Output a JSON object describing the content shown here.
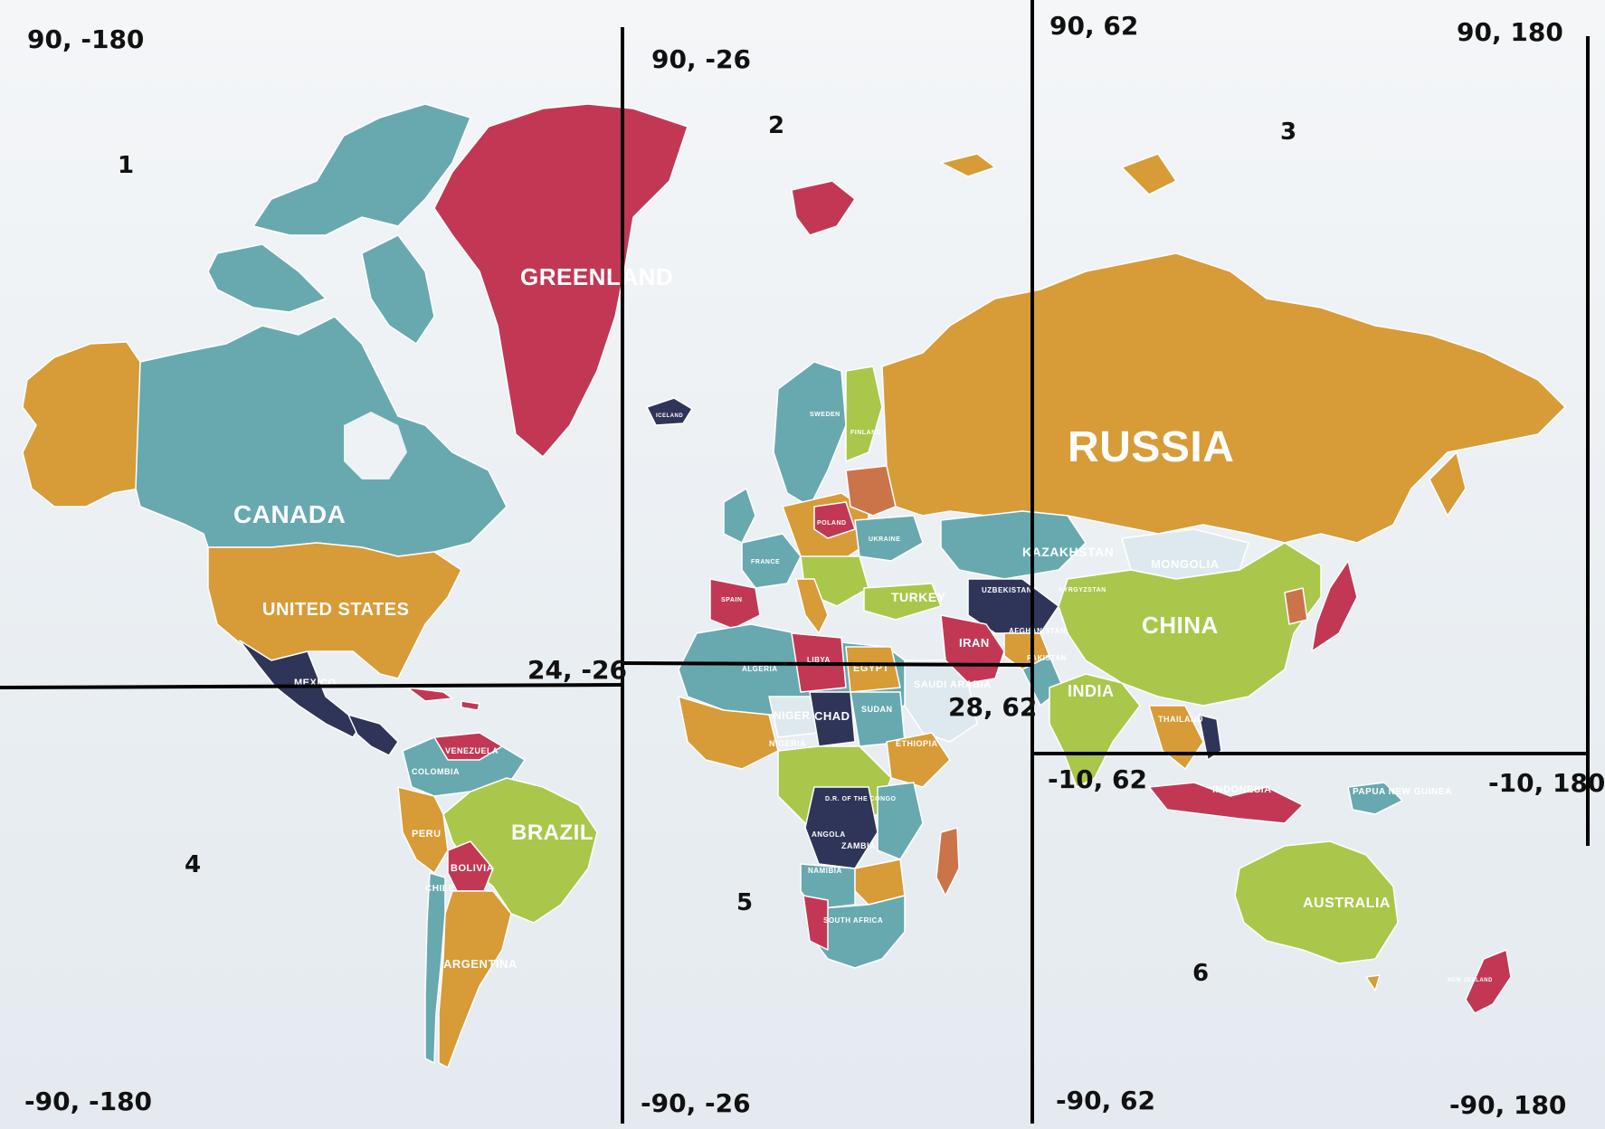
{
  "colors": {
    "teal": "#68a9b0",
    "orange": "#d79b38",
    "crimson": "#c23854",
    "green": "#a9c74a",
    "navy": "#2f3558",
    "rust": "#cc7449",
    "grid": "#000000"
  },
  "corners": {
    "z1_tl": "90, -180",
    "z2_tl": "90, -26",
    "z3_tl": "90, 62",
    "z3_tr": "90, 180",
    "mid_left": "24, -26",
    "mid_center": "28, 62",
    "z6_tl": "-10, 62",
    "z6_tr": "-10, 180",
    "bl_1": "-90, -180",
    "bl_2": "-90, -26",
    "bl_3": "-90, 62",
    "br": "-90, 180"
  },
  "zones": {
    "z1": "1",
    "z2": "2",
    "z3": "3",
    "z4": "4",
    "z5": "5",
    "z6": "6"
  },
  "countries": {
    "greenland": "GREENLAND",
    "canada": "CANADA",
    "united_states": "UNITED STATES",
    "mexico": "MEXICO",
    "brazil": "BRAZIL",
    "argentina": "ARGENTINA",
    "bolivia": "BOLIVIA",
    "peru": "PERU",
    "colombia": "COLOMBIA",
    "venezuela": "VENEZUELA",
    "chile": "CHILE",
    "russia": "RUSSIA",
    "china": "CHINA",
    "india": "INDIA",
    "kazakhstan": "KAZAKHSTAN",
    "mongolia": "MONGOLIA",
    "iran": "IRAN",
    "turkey": "TURKEY",
    "saudi_arabia": "SAUDI ARABIA",
    "egypt": "EGYPT",
    "libya": "LIBYA",
    "algeria": "ALGERIA",
    "niger": "NIGER",
    "chad": "CHAD",
    "sudan": "SUDAN",
    "ethiopia": "ETHIOPIA",
    "nigeria": "NIGERIA",
    "drc": "D.R. OF THE CONGO",
    "angola": "ANGOLA",
    "zambia": "ZAMBIA",
    "namibia": "NAMIBIA",
    "south_africa": "SOUTH AFRICA",
    "australia": "AUSTRALIA",
    "indonesia": "INDONESIA",
    "papua": "PAPUA NEW GUINEA",
    "finland": "FINLAND",
    "sweden": "SWEDEN",
    "iceland": "ICELAND",
    "france": "FRANCE",
    "spain": "SPAIN",
    "poland": "POLAND",
    "ukraine": "UKRAINE",
    "afghanistan": "AFGHANISTAN",
    "pakistan": "PAKISTAN",
    "uzbekistan": "UZBEKISTAN",
    "kyrgyzstan": "KYRGYZSTAN",
    "thailand": "THAILAND",
    "new_zealand": "NEW ZEALAND"
  }
}
